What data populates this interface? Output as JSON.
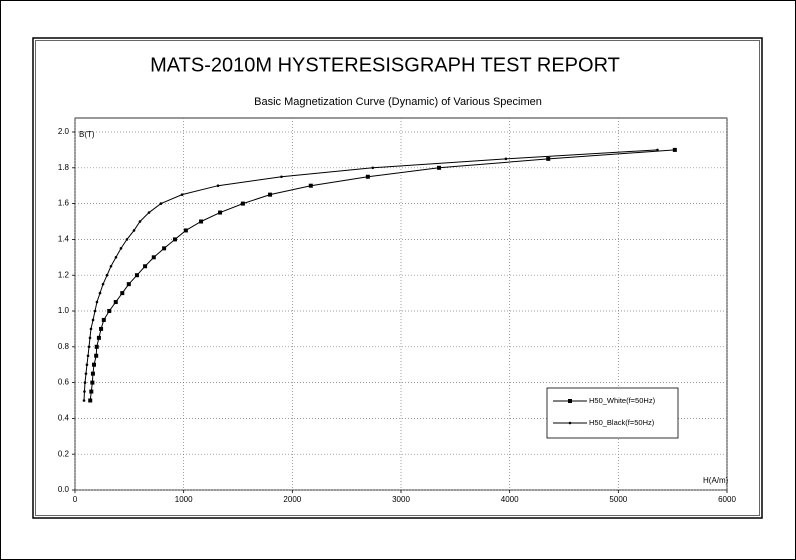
{
  "chart_data": {
    "type": "line",
    "title": "MATS-2010M HYSTERESISGRAPH TEST REPORT",
    "subtitle": "Basic Magnetization Curve (Dynamic) of Various Specimen",
    "x_label": "H(A/m)",
    "y_label": "B(T)",
    "xlim": [
      0,
      6000
    ],
    "ylim": [
      0,
      2
    ],
    "xticks": [
      0,
      1000,
      2000,
      3000,
      4000,
      5000,
      6000
    ],
    "yticks": [
      {
        "value": 0,
        "label": "0.0"
      },
      {
        "value": 0.2,
        "label": "0.2"
      },
      {
        "value": 0.4,
        "label": "0.4"
      },
      {
        "value": 0.6,
        "label": "0.6"
      },
      {
        "value": 0.8,
        "label": "0.8"
      },
      {
        "value": 1,
        "label": "1.0"
      },
      {
        "value": 1.2,
        "label": "1.2"
      },
      {
        "value": 1.4,
        "label": "1.4"
      },
      {
        "value": 1.6,
        "label": "1.6"
      },
      {
        "value": 1.8,
        "label": "1.8"
      },
      {
        "value": 2,
        "label": "2.0"
      }
    ],
    "grid": true,
    "legend": "lower-right",
    "series": [
      {
        "name": "H50_White(f=50Hz)",
        "color": "#000000",
        "marker": "square",
        "x": [
          140,
          150,
          160,
          165,
          175,
          195,
          200,
          220,
          240,
          265,
          315,
          375,
          435,
          495,
          570,
          645,
          725,
          820,
          920,
          1020,
          1160,
          1335,
          1545,
          1795,
          2170,
          2695,
          3350,
          4355,
          5520
        ],
        "values": [
          0.5,
          0.55,
          0.6,
          0.65,
          0.7,
          0.75,
          0.8,
          0.85,
          0.9,
          0.95,
          1.0,
          1.05,
          1.1,
          1.15,
          1.2,
          1.25,
          1.3,
          1.35,
          1.4,
          1.45,
          1.5,
          1.55,
          1.6,
          1.65,
          1.7,
          1.75,
          1.8,
          1.85,
          1.9
        ]
      },
      {
        "name": "H50_Black(f=50Hz)",
        "color": "#000000",
        "marker": "dot",
        "x": [
          83,
          87,
          92,
          101,
          110,
          120,
          129,
          138,
          147,
          166,
          184,
          202,
          230,
          258,
          295,
          331,
          377,
          423,
          478,
          543,
          598,
          681,
          791,
          985,
          1316,
          1900,
          2740,
          3965,
          5360
        ],
        "values": [
          0.5,
          0.55,
          0.6,
          0.65,
          0.7,
          0.75,
          0.8,
          0.85,
          0.9,
          0.95,
          1.0,
          1.05,
          1.1,
          1.15,
          1.2,
          1.25,
          1.3,
          1.35,
          1.4,
          1.45,
          1.5,
          1.55,
          1.6,
          1.65,
          1.7,
          1.75,
          1.8,
          1.85,
          1.9
        ]
      }
    ]
  }
}
